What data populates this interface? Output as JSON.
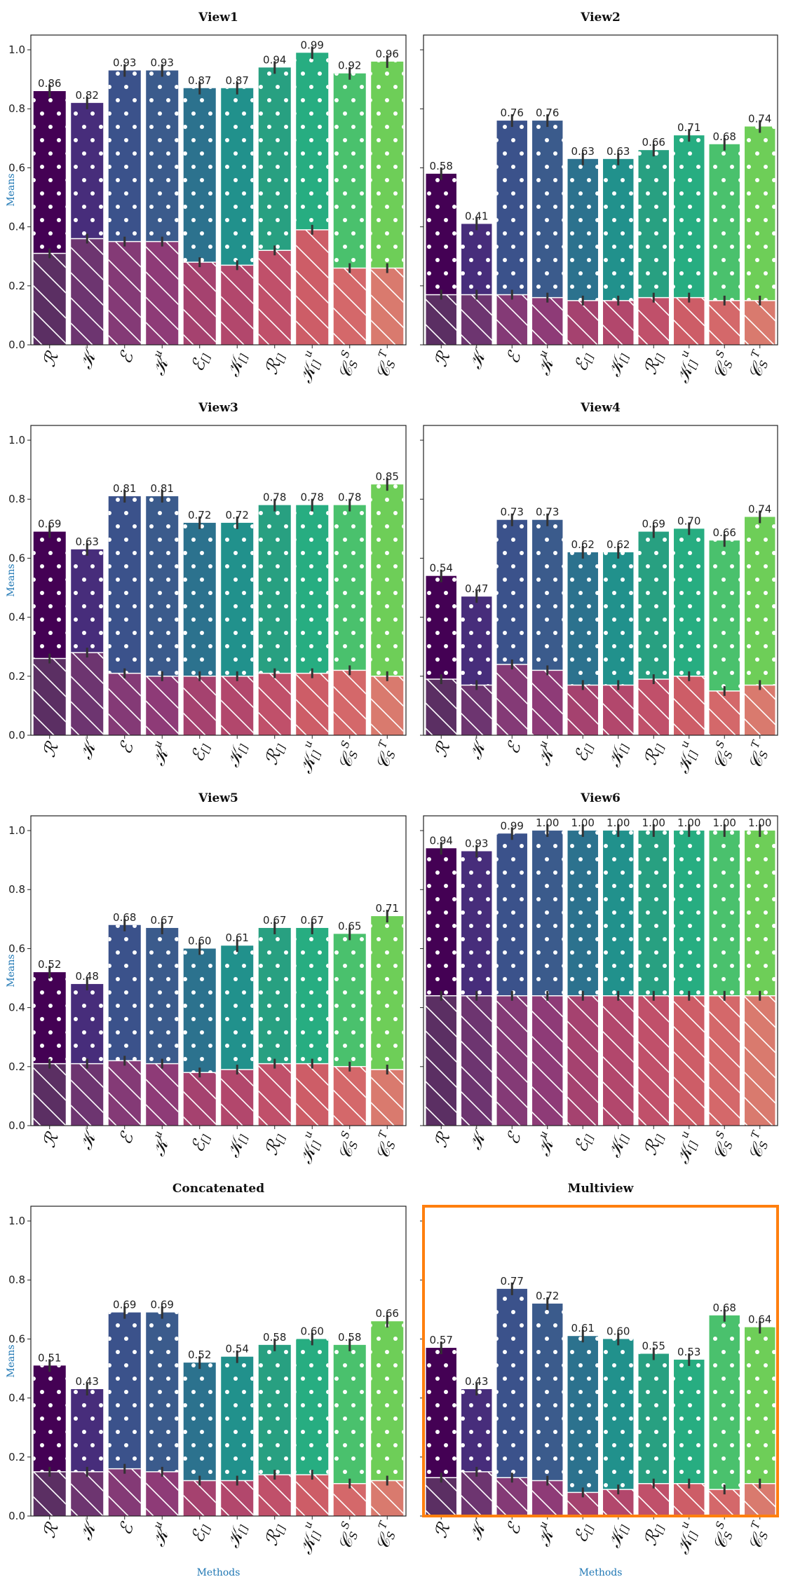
{
  "chart_data": [
    {
      "type": "bar",
      "title": "View1",
      "ylabel": "Means",
      "xlabel": "",
      "ylim": [
        0,
        1.05
      ],
      "categories": [
        "R",
        "K",
        "E",
        "K^u",
        "E_[]",
        "K_[]",
        "R_[]",
        "K^u_[]",
        "C_S^S",
        "C_S^T"
      ],
      "values": [
        0.86,
        0.82,
        0.93,
        0.93,
        0.87,
        0.87,
        0.94,
        0.99,
        0.92,
        0.96
      ],
      "value_labels": [
        "0.86",
        "0.82",
        "0.93",
        "0.93",
        "0.87",
        "0.87",
        "0.94",
        "0.99",
        "0.92",
        "0.96"
      ],
      "lower_values": [
        0.31,
        0.36,
        0.35,
        0.35,
        0.28,
        0.27,
        0.32,
        0.39,
        0.26,
        0.26
      ],
      "highlighted": false
    },
    {
      "type": "bar",
      "title": "View2",
      "ylabel": "",
      "xlabel": "",
      "ylim": [
        0,
        1.05
      ],
      "categories": [
        "R",
        "K",
        "E",
        "K^u",
        "E_[]",
        "K_[]",
        "R_[]",
        "K^u_[]",
        "C_S^S",
        "C_S^T"
      ],
      "values": [
        0.58,
        0.41,
        0.76,
        0.76,
        0.63,
        0.63,
        0.66,
        0.71,
        0.68,
        0.74
      ],
      "value_labels": [
        "0.58",
        "0.41",
        "0.76",
        "0.76",
        "0.63",
        "0.63",
        "0.66",
        "0.71",
        "0.68",
        "0.74"
      ],
      "lower_values": [
        0.17,
        0.17,
        0.17,
        0.16,
        0.15,
        0.15,
        0.16,
        0.16,
        0.15,
        0.15
      ],
      "highlighted": false
    },
    {
      "type": "bar",
      "title": "View3",
      "ylabel": "Means",
      "xlabel": "",
      "ylim": [
        0,
        1.05
      ],
      "categories": [
        "R",
        "K",
        "E",
        "K^u",
        "E_[]",
        "K_[]",
        "R_[]",
        "K^u_[]",
        "C_S^S",
        "C_S^T"
      ],
      "values": [
        0.69,
        0.63,
        0.81,
        0.81,
        0.72,
        0.72,
        0.78,
        0.78,
        0.78,
        0.85
      ],
      "value_labels": [
        "0.69",
        "0.63",
        "0.81",
        "0.81",
        "0.72",
        "0.72",
        "0.78",
        "0.78",
        "0.78",
        "0.85"
      ],
      "lower_values": [
        0.26,
        0.28,
        0.21,
        0.2,
        0.2,
        0.2,
        0.21,
        0.21,
        0.22,
        0.2
      ],
      "highlighted": false
    },
    {
      "type": "bar",
      "title": "View4",
      "ylabel": "",
      "xlabel": "",
      "ylim": [
        0,
        1.05
      ],
      "categories": [
        "R",
        "K",
        "E",
        "K^u",
        "E_[]",
        "K_[]",
        "R_[]",
        "K^u_[]",
        "C_S^S",
        "C_S^T"
      ],
      "values": [
        0.54,
        0.47,
        0.73,
        0.73,
        0.62,
        0.62,
        0.69,
        0.7,
        0.66,
        0.74
      ],
      "value_labels": [
        "0.54",
        "0.47",
        "0.73",
        "0.73",
        "0.62",
        "0.62",
        "0.69",
        "0.70",
        "0.66",
        "0.74"
      ],
      "lower_values": [
        0.19,
        0.17,
        0.24,
        0.22,
        0.17,
        0.17,
        0.19,
        0.2,
        0.15,
        0.17
      ],
      "highlighted": false
    },
    {
      "type": "bar",
      "title": "View5",
      "ylabel": "Means",
      "xlabel": "",
      "ylim": [
        0,
        1.05
      ],
      "categories": [
        "R",
        "K",
        "E",
        "K^u",
        "E_[]",
        "K_[]",
        "R_[]",
        "K^u_[]",
        "C_S^S",
        "C_S^T"
      ],
      "values": [
        0.52,
        0.48,
        0.68,
        0.67,
        0.6,
        0.61,
        0.67,
        0.67,
        0.65,
        0.71
      ],
      "value_labels": [
        "0.52",
        "0.48",
        "0.68",
        "0.67",
        "0.60",
        "0.61",
        "0.67",
        "0.67",
        "0.65",
        "0.71"
      ],
      "lower_values": [
        0.21,
        0.21,
        0.22,
        0.21,
        0.18,
        0.19,
        0.21,
        0.21,
        0.2,
        0.19
      ],
      "highlighted": false
    },
    {
      "type": "bar",
      "title": "View6",
      "ylabel": "",
      "xlabel": "",
      "ylim": [
        0,
        1.05
      ],
      "categories": [
        "R",
        "K",
        "E",
        "K^u",
        "E_[]",
        "K_[]",
        "R_[]",
        "K^u_[]",
        "C_S^S",
        "C_S^T"
      ],
      "values": [
        0.94,
        0.93,
        0.99,
        1.0,
        1.0,
        1.0,
        1.0,
        1.0,
        1.0,
        1.0
      ],
      "value_labels": [
        "0.94",
        "0.93",
        "0.99",
        "1.00",
        "1.00",
        "1.00",
        "1.00",
        "1.00",
        "1.00",
        "1.00"
      ],
      "lower_values": [
        0.44,
        0.44,
        0.44,
        0.44,
        0.44,
        0.44,
        0.44,
        0.44,
        0.44,
        0.44
      ],
      "highlighted": false
    },
    {
      "type": "bar",
      "title": "Concatenated",
      "ylabel": "Means",
      "xlabel": "Methods",
      "ylim": [
        0,
        1.05
      ],
      "categories": [
        "R",
        "K",
        "E",
        "K^u",
        "E_[]",
        "K_[]",
        "R_[]",
        "K^u_[]",
        "C_S^S",
        "C_S^T"
      ],
      "values": [
        0.51,
        0.43,
        0.69,
        0.69,
        0.52,
        0.54,
        0.58,
        0.6,
        0.58,
        0.66
      ],
      "value_labels": [
        "0.51",
        "0.43",
        "0.69",
        "0.69",
        "0.52",
        "0.54",
        "0.58",
        "0.60",
        "0.58",
        "0.66"
      ],
      "lower_values": [
        0.15,
        0.15,
        0.16,
        0.15,
        0.12,
        0.12,
        0.14,
        0.14,
        0.11,
        0.12
      ],
      "highlighted": false
    },
    {
      "type": "bar",
      "title": "Multiview",
      "ylabel": "",
      "xlabel": "Methods",
      "ylim": [
        0,
        1.05
      ],
      "categories": [
        "R",
        "K",
        "E",
        "K^u",
        "E_[]",
        "K_[]",
        "R_[]",
        "K^u_[]",
        "C_S^S",
        "C_S^T"
      ],
      "values": [
        0.57,
        0.43,
        0.77,
        0.72,
        0.61,
        0.6,
        0.55,
        0.53,
        0.68,
        0.64
      ],
      "value_labels": [
        "0.57",
        "0.43",
        "0.77",
        "0.72",
        "0.61",
        "0.60",
        "0.55",
        "0.53",
        "0.68",
        "0.64"
      ],
      "lower_values": [
        0.13,
        0.15,
        0.13,
        0.12,
        0.08,
        0.09,
        0.11,
        0.11,
        0.09,
        0.11
      ],
      "highlighted": true
    }
  ],
  "y_ticks": [
    "0.0",
    "0.2",
    "0.4",
    "0.6",
    "0.8",
    "1.0"
  ],
  "colors": {
    "upper": [
      "#440154",
      "#472d7b",
      "#3b528b",
      "#3b5b8c",
      "#2c728e",
      "#21918c",
      "#28a081",
      "#27ad81",
      "#4ac16d",
      "#6ece58"
    ],
    "lower": [
      "#5b2f63",
      "#6d3570",
      "#843a76",
      "#8e3b77",
      "#a5426f",
      "#b2476c",
      "#c0506a",
      "#cd5d67",
      "#d4686a",
      "#d97a6e"
    ],
    "highlight_border": "#ff7f0e",
    "label_axis": "#1f77b4"
  }
}
